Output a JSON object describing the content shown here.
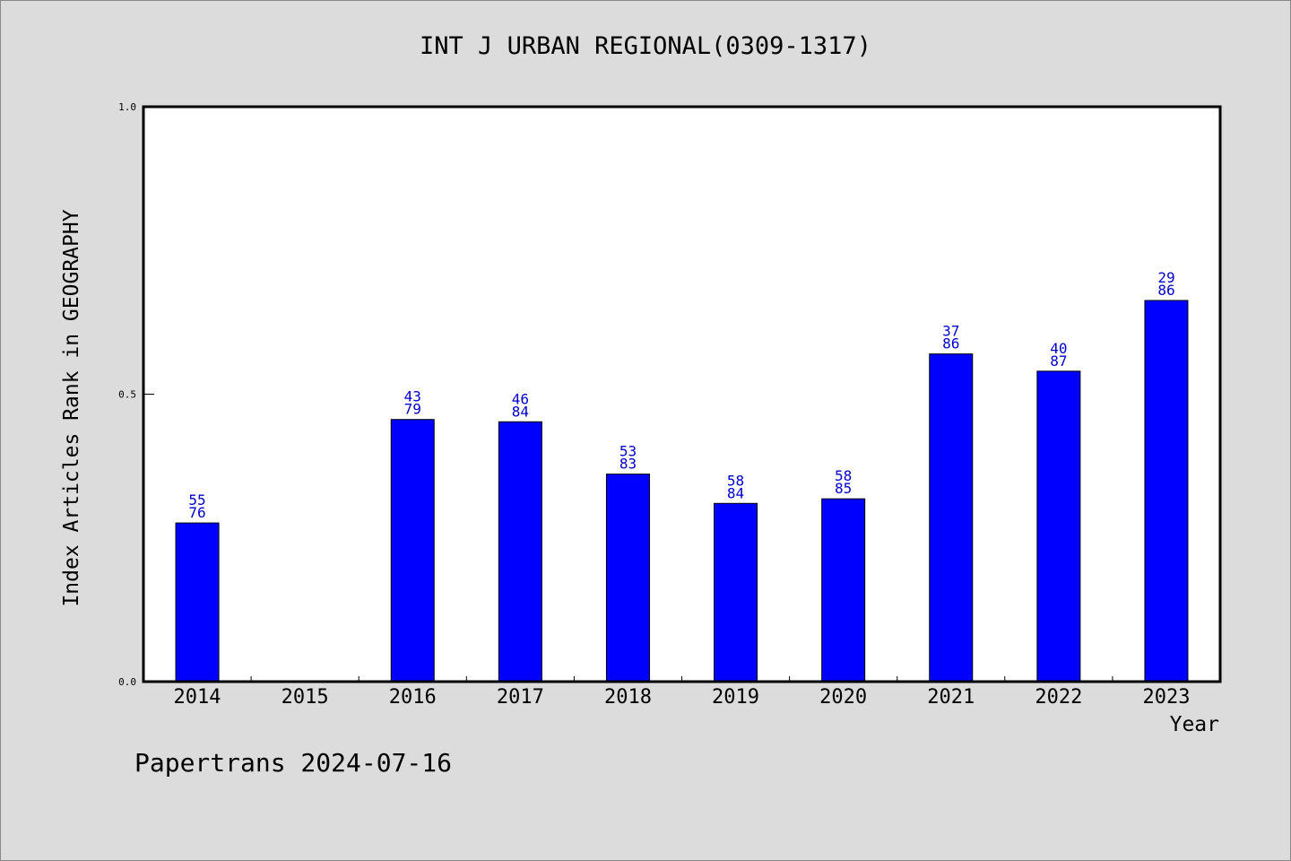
{
  "chart_data": {
    "type": "bar",
    "title": "INT J URBAN REGIONAL(0309-1317)",
    "xlabel": "Year",
    "ylabel": "Index Articles Rank in GEOGRAPHY",
    "ylim": [
      0.0,
      1.0
    ],
    "yticks": [
      "0.0",
      "0.5",
      "1.0"
    ],
    "categories": [
      "2014",
      "2015",
      "2016",
      "2017",
      "2018",
      "2019",
      "2020",
      "2021",
      "2022",
      "2023"
    ],
    "values": [
      0.276,
      null,
      0.456,
      0.452,
      0.361,
      0.31,
      0.318,
      0.57,
      0.54,
      0.663
    ],
    "labels_top": [
      "55",
      "",
      "43",
      "46",
      "53",
      "58",
      "58",
      "37",
      "40",
      "29"
    ],
    "labels_bottom": [
      "76",
      "",
      "79",
      "84",
      "83",
      "84",
      "85",
      "86",
      "87",
      "86"
    ],
    "bar_color": "#0000ff",
    "label_color": "#0000cc",
    "grid": false
  },
  "footer": {
    "text": "Papertrans 2024-07-16"
  }
}
